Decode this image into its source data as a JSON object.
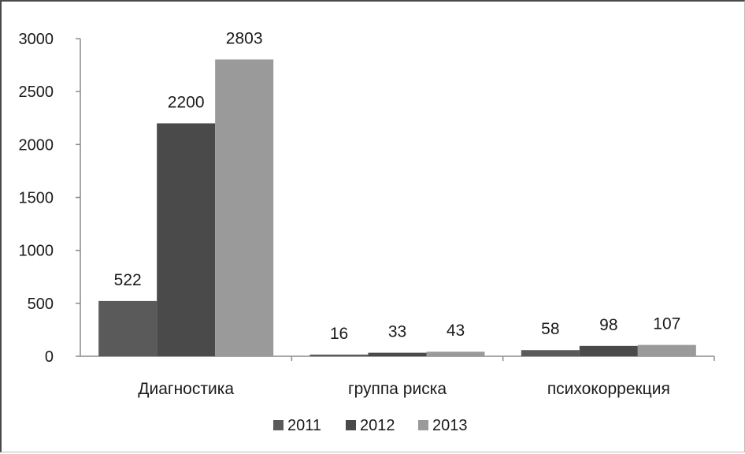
{
  "chart_data": {
    "type": "bar",
    "categories": [
      "Диагностика",
      "группа риска",
      "психокоррекция"
    ],
    "series": [
      {
        "name": "2011",
        "values": [
          522,
          16,
          58
        ],
        "color": "#5a5a5a"
      },
      {
        "name": "2012",
        "values": [
          2200,
          33,
          98
        ],
        "color": "#4a4a4a"
      },
      {
        "name": "2013",
        "values": [
          2803,
          43,
          107
        ],
        "color": "#9a9a9a"
      }
    ],
    "title": "",
    "xlabel": "",
    "ylabel": "",
    "ylim": [
      0,
      3000
    ],
    "yticks": [
      0,
      500,
      1000,
      1500,
      2000,
      2500,
      3000
    ],
    "ytick_labels": [
      "0",
      "500",
      "1000",
      "1500",
      "2000",
      "2500",
      "3000"
    ],
    "grid": false,
    "legend": "bottom"
  }
}
